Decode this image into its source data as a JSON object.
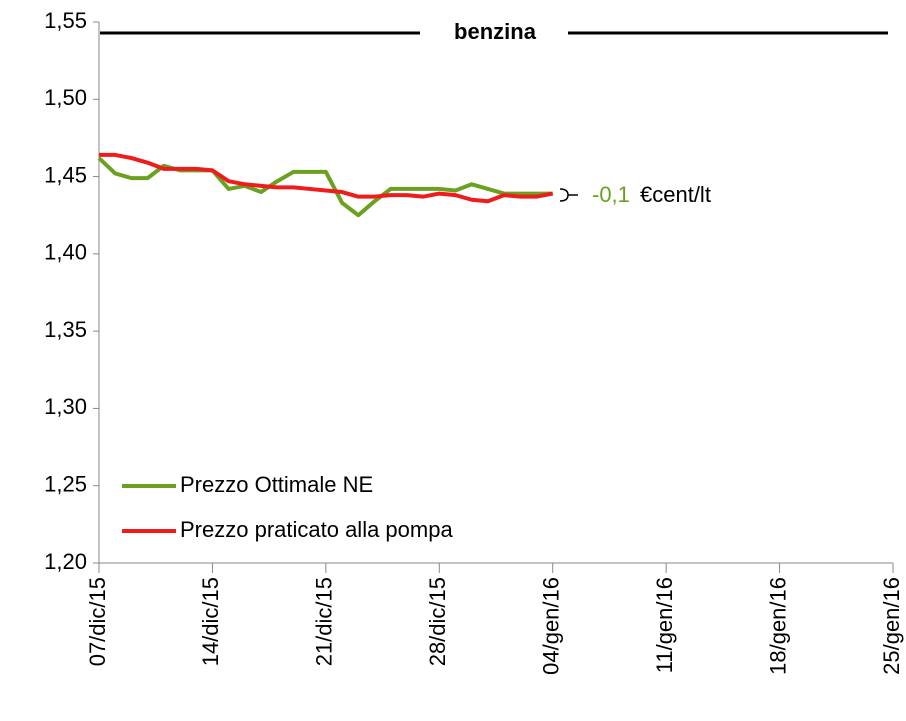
{
  "chart_data": {
    "type": "line",
    "title": "benzina",
    "x": [
      "2015-12-07",
      "2015-12-08",
      "2015-12-09",
      "2015-12-10",
      "2015-12-11",
      "2015-12-12",
      "2015-12-13",
      "2015-12-14",
      "2015-12-15",
      "2015-12-16",
      "2015-12-17",
      "2015-12-18",
      "2015-12-19",
      "2015-12-20",
      "2015-12-21",
      "2015-12-22",
      "2015-12-23",
      "2015-12-24",
      "2015-12-25",
      "2015-12-26",
      "2015-12-27",
      "2015-12-28",
      "2015-12-29",
      "2015-12-30",
      "2015-12-31",
      "2016-01-01",
      "2016-01-02",
      "2016-01-03",
      "2016-01-04"
    ],
    "series": [
      {
        "name": "Prezzo Ottimale NE",
        "color": "#6aa121",
        "values": [
          1.462,
          1.452,
          1.449,
          1.449,
          1.457,
          1.454,
          1.454,
          1.454,
          1.442,
          1.444,
          1.44,
          1.447,
          1.453,
          1.453,
          1.453,
          1.433,
          1.425,
          1.434,
          1.442,
          1.442,
          1.442,
          1.442,
          1.441,
          1.445,
          1.442,
          1.439,
          1.439,
          1.439,
          1.439
        ]
      },
      {
        "name": "Prezzo praticato alla pompa",
        "color": "#ee1c1c",
        "values": [
          1.464,
          1.464,
          1.462,
          1.459,
          1.455,
          1.455,
          1.455,
          1.454,
          1.447,
          1.445,
          1.444,
          1.443,
          1.443,
          1.442,
          1.441,
          1.44,
          1.437,
          1.437,
          1.438,
          1.438,
          1.437,
          1.439,
          1.438,
          1.435,
          1.434,
          1.438,
          1.437,
          1.437,
          1.439
        ]
      }
    ],
    "xlim": [
      "2015-12-07",
      "2016-01-25"
    ],
    "xticks": [
      {
        "value": "2015-12-07",
        "label": "07/dic/15"
      },
      {
        "value": "2015-12-14",
        "label": "14/dic/15"
      },
      {
        "value": "2015-12-21",
        "label": "21/dic/15"
      },
      {
        "value": "2015-12-28",
        "label": "28/dic/15"
      },
      {
        "value": "2016-01-04",
        "label": "04/gen/16"
      },
      {
        "value": "2016-01-11",
        "label": "11/gen/16"
      },
      {
        "value": "2016-01-18",
        "label": "18/gen/16"
      },
      {
        "value": "2016-01-25",
        "label": "25/gen/16"
      }
    ],
    "ylim": [
      1.2,
      1.55
    ],
    "yticks": [
      {
        "value": 1.2,
        "label": "1,20"
      },
      {
        "value": 1.25,
        "label": "1,25"
      },
      {
        "value": 1.3,
        "label": "1,30"
      },
      {
        "value": 1.35,
        "label": "1,35"
      },
      {
        "value": 1.4,
        "label": "1,40"
      },
      {
        "value": 1.45,
        "label": "1,45"
      },
      {
        "value": 1.5,
        "label": "1,50"
      },
      {
        "value": 1.55,
        "label": "1,55"
      }
    ],
    "legend": "lower left",
    "annotation": {
      "value": "-0,1",
      "unit": "€cent/lt"
    }
  }
}
